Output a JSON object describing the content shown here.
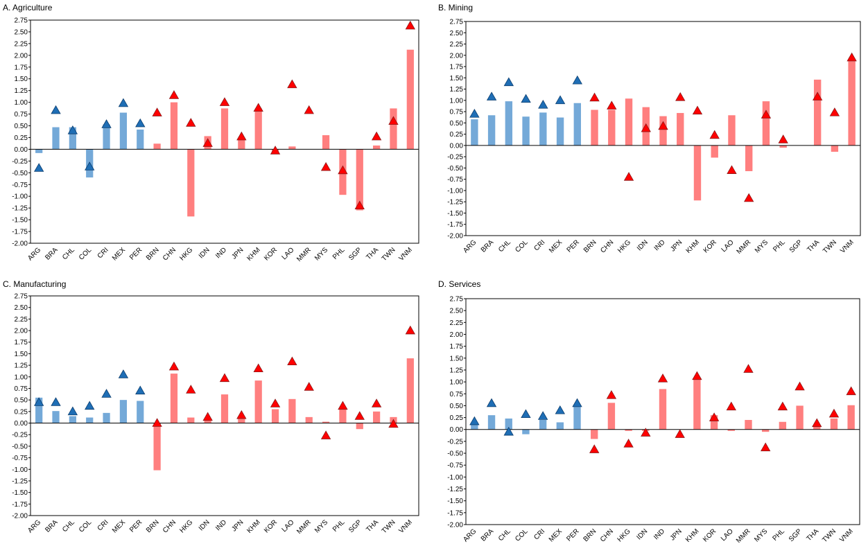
{
  "colors": {
    "latam_bar": "#74A9D8",
    "asia_bar": "#FF7F7F",
    "latam_marker": "#1F6EB5",
    "asia_marker": "#FF0000",
    "marker_edge": "#8B1A1A"
  },
  "chart_data": [
    {
      "type": "bar",
      "title": "A. Agriculture",
      "categories": [
        "ARG",
        "BRA",
        "CHL",
        "COL",
        "CRI",
        "MEX",
        "PER",
        "BRN",
        "CHN",
        "HKG",
        "IDN",
        "IND",
        "JPN",
        "KHM",
        "KOR",
        "LAO",
        "MMR",
        "MYS",
        "PHL",
        "SGP",
        "THA",
        "TWN",
        "VNM"
      ],
      "latam_count": 7,
      "ylim": [
        -2.0,
        2.75
      ],
      "yticks": [
        "2.75",
        "2.50",
        "2.25",
        "2.00",
        "1.75",
        "1.50",
        "1.25",
        "1.00",
        "0.75",
        "0.50",
        "0.25",
        "0.00",
        "-0.25",
        "-0.50",
        "-0.75",
        "-1.00",
        "-1.25",
        "-1.50",
        "-1.75",
        "-2.00"
      ],
      "series": [
        {
          "type": "bar",
          "values": [
            -0.08,
            0.47,
            0.47,
            -0.6,
            0.53,
            0.78,
            0.42,
            0.12,
            1.0,
            -1.43,
            0.28,
            0.87,
            0.22,
            0.87,
            -0.05,
            0.06,
            0.0,
            0.3,
            -0.97,
            -1.3,
            0.08,
            0.87,
            2.12
          ]
        },
        {
          "type": "marker",
          "values": [
            -0.4,
            0.83,
            0.4,
            -0.37,
            0.53,
            0.98,
            0.55,
            0.78,
            1.15,
            0.56,
            0.13,
            1.0,
            0.27,
            0.88,
            -0.03,
            1.38,
            0.83,
            -0.38,
            -0.45,
            -1.2,
            0.27,
            0.6,
            2.63
          ]
        }
      ]
    },
    {
      "type": "bar",
      "title": "B. Mining",
      "categories": [
        "ARG",
        "BRA",
        "CHL",
        "COL",
        "CRI",
        "MEX",
        "PER",
        "BRN",
        "CHN",
        "HKG",
        "IDN",
        "IND",
        "JPN",
        "KHM",
        "KOR",
        "LAO",
        "MMR",
        "MYS",
        "PHL",
        "SGP",
        "THA",
        "TWN",
        "VNM"
      ],
      "latam_count": 7,
      "ylim": [
        -2.0,
        2.75
      ],
      "yticks": [
        "2.75",
        "2.50",
        "2.25",
        "2.00",
        "1.75",
        "1.50",
        "1.25",
        "1.00",
        "0.75",
        "0.50",
        "0.25",
        "0.00",
        "-0.25",
        "-0.50",
        "-0.75",
        "-1.00",
        "-1.25",
        "-1.50",
        "-1.75",
        "-2.00"
      ],
      "series": [
        {
          "type": "bar",
          "values": [
            0.58,
            0.67,
            0.98,
            0.64,
            0.73,
            0.62,
            0.94,
            0.79,
            0.79,
            1.04,
            0.85,
            0.65,
            0.72,
            -1.22,
            -0.27,
            0.67,
            -0.57,
            0.98,
            -0.05,
            0.0,
            1.46,
            -0.14,
            1.88
          ]
        },
        {
          "type": "marker",
          "values": [
            0.7,
            1.08,
            1.4,
            1.03,
            0.9,
            1.0,
            1.44,
            1.06,
            0.88,
            -0.7,
            0.38,
            0.43,
            1.07,
            0.77,
            0.23,
            -0.55,
            -1.17,
            0.68,
            0.13,
            null,
            1.08,
            0.73,
            1.95
          ]
        }
      ]
    },
    {
      "type": "bar",
      "title": "C. Manufacturing",
      "categories": [
        "ARG",
        "BRA",
        "CHL",
        "COL",
        "CRI",
        "MEX",
        "PER",
        "BRN",
        "CHN",
        "HKG",
        "IDN",
        "IND",
        "JPN",
        "KHM",
        "KOR",
        "LAO",
        "MMR",
        "MYS",
        "PHL",
        "SGP",
        "THA",
        "TWN",
        "VNM"
      ],
      "latam_count": 7,
      "ylim": [
        -2.0,
        2.75
      ],
      "yticks": [
        "2.75",
        "2.50",
        "2.25",
        "2.00",
        "1.75",
        "1.50",
        "1.25",
        "1.00",
        "0.75",
        "0.50",
        "0.25",
        "0.00",
        "-0.25",
        "-0.50",
        "-0.75",
        "-1.00",
        "-1.25",
        "-1.50",
        "-1.75",
        "-2.00"
      ],
      "series": [
        {
          "type": "bar",
          "values": [
            0.55,
            0.26,
            0.15,
            0.12,
            0.22,
            0.5,
            0.48,
            -1.02,
            1.07,
            0.12,
            0.1,
            0.62,
            0.14,
            0.92,
            0.3,
            0.52,
            0.13,
            0.03,
            0.3,
            -0.13,
            0.25,
            0.13,
            1.4
          ]
        },
        {
          "type": "marker",
          "values": [
            0.45,
            0.45,
            0.25,
            0.37,
            0.63,
            1.05,
            0.7,
            0.0,
            1.22,
            0.72,
            0.13,
            0.97,
            0.17,
            1.18,
            0.42,
            1.33,
            0.78,
            -0.27,
            0.37,
            0.15,
            0.42,
            -0.02,
            2.0
          ]
        }
      ]
    },
    {
      "type": "bar",
      "title": "D. Services",
      "categories": [
        "ARG",
        "BRA",
        "CHL",
        "COL",
        "CRI",
        "MEX",
        "PER",
        "BRN",
        "CHN",
        "HKG",
        "IDN",
        "IND",
        "JPN",
        "KHM",
        "KOR",
        "LAO",
        "MMR",
        "MYS",
        "PHL",
        "SGP",
        "THA",
        "TWN",
        "VNM"
      ],
      "latam_count": 7,
      "ylim": [
        -2.0,
        2.75
      ],
      "yticks": [
        "2.75",
        "2.50",
        "2.25",
        "2.00",
        "1.75",
        "1.50",
        "1.25",
        "1.00",
        "0.75",
        "0.50",
        "0.25",
        "0.00",
        "-0.25",
        "-0.50",
        "-0.75",
        "-1.00",
        "-1.25",
        "-1.50",
        "-1.75",
        "-2.00"
      ],
      "series": [
        {
          "type": "bar",
          "values": [
            0.1,
            0.3,
            0.23,
            -0.1,
            0.2,
            0.15,
            0.48,
            -0.2,
            0.56,
            -0.03,
            -0.03,
            0.85,
            0.0,
            1.05,
            0.3,
            -0.03,
            0.2,
            -0.05,
            0.16,
            0.5,
            0.08,
            0.23,
            0.51
          ]
        },
        {
          "type": "marker",
          "values": [
            0.17,
            0.55,
            -0.05,
            0.32,
            0.28,
            0.4,
            0.55,
            -0.42,
            0.72,
            -0.3,
            -0.07,
            1.07,
            -0.1,
            1.12,
            0.25,
            0.48,
            1.27,
            -0.38,
            0.48,
            0.9,
            0.13,
            0.33,
            0.8
          ]
        }
      ]
    }
  ]
}
